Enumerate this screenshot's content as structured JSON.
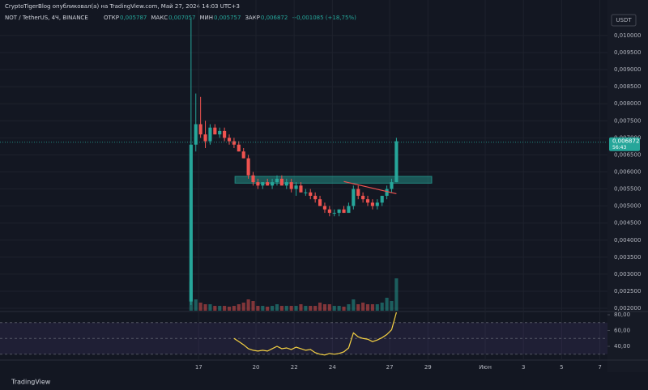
{
  "header": "CryptoTigerBlog опубликовал(а) на TradingView.com, Май 27, 2024 14:03 UTC+3",
  "legend": {
    "symbol": "NOT / TetherUS, 4Ч, BINANCE",
    "items": [
      {
        "label": "ОТКР",
        "value": "0,005787"
      },
      {
        "label": "МАКС",
        "value": "0,007057"
      },
      {
        "label": "МИН",
        "value": "0,005757"
      },
      {
        "label": "ЗАКР",
        "value": "0,006872"
      }
    ],
    "change": "+0,001085 (+18,75%)"
  },
  "currency": "USDT",
  "footer": "TradingView",
  "chart_data": {
    "type": "candlestick",
    "up_color": "#26a69a",
    "down_color": "#ef5350",
    "x": [
      16.6,
      16.85,
      17.1,
      17.35,
      17.6,
      17.85,
      18.1,
      18.35,
      18.6,
      18.85,
      19.1,
      19.35,
      19.6,
      19.85,
      20.1,
      20.35,
      20.6,
      20.85,
      21.1,
      21.35,
      21.6,
      21.85,
      22.1,
      22.35,
      22.6,
      22.85,
      23.1,
      23.35,
      23.6,
      23.85,
      24.1,
      24.35,
      24.6,
      24.85,
      25.1,
      25.35,
      25.6,
      25.85,
      26.1,
      26.35,
      26.6,
      26.85,
      27.1,
      27.35
    ],
    "open": [
      0.0022,
      0.0068,
      0.0074,
      0.0071,
      0.0069,
      0.0073,
      0.0071,
      0.0072,
      0.007,
      0.0069,
      0.0068,
      0.0066,
      0.0064,
      0.0059,
      0.0057,
      0.0056,
      0.0057,
      0.0056,
      0.0057,
      0.0058,
      0.0056,
      0.0057,
      0.0055,
      0.0056,
      0.0054,
      0.0054,
      0.0053,
      0.0052,
      0.005,
      0.0049,
      0.0048,
      0.0048,
      0.0049,
      0.0048,
      0.005,
      0.0055,
      0.0053,
      0.0052,
      0.0051,
      0.005,
      0.0051,
      0.0053,
      0.0055,
      0.0057
    ],
    "high": [
      0.0105,
      0.0083,
      0.0082,
      0.0075,
      0.0074,
      0.0074,
      0.0073,
      0.0073,
      0.0071,
      0.007,
      0.0069,
      0.0067,
      0.0065,
      0.006,
      0.0058,
      0.0057,
      0.0058,
      0.0058,
      0.0059,
      0.0059,
      0.0058,
      0.0058,
      0.0057,
      0.0057,
      0.0055,
      0.0055,
      0.0054,
      0.0053,
      0.0051,
      0.005,
      0.0049,
      0.0049,
      0.005,
      0.0051,
      0.0056,
      0.0056,
      0.0054,
      0.0053,
      0.0052,
      0.0052,
      0.0053,
      0.0056,
      0.0058,
      0.007
    ],
    "low": [
      0.0021,
      0.0066,
      0.007,
      0.0067,
      0.0068,
      0.0071,
      0.007,
      0.0069,
      0.0068,
      0.0067,
      0.0066,
      0.0064,
      0.0058,
      0.0056,
      0.0055,
      0.0055,
      0.0056,
      0.0055,
      0.0056,
      0.0056,
      0.0055,
      0.0054,
      0.0053,
      0.0054,
      0.0053,
      0.0052,
      0.0051,
      0.005,
      0.0048,
      0.0047,
      0.0047,
      0.0047,
      0.0048,
      0.0048,
      0.0049,
      0.0052,
      0.0051,
      0.005,
      0.0049,
      0.0049,
      0.005,
      0.0052,
      0.0054,
      0.0057
    ],
    "close": [
      0.0068,
      0.0074,
      0.0071,
      0.0069,
      0.0073,
      0.0071,
      0.0072,
      0.007,
      0.0069,
      0.0068,
      0.0066,
      0.0064,
      0.0059,
      0.0057,
      0.0056,
      0.0057,
      0.0056,
      0.0057,
      0.0058,
      0.0056,
      0.0057,
      0.0055,
      0.0056,
      0.0054,
      0.0054,
      0.0053,
      0.0052,
      0.005,
      0.0049,
      0.0048,
      0.0048,
      0.0049,
      0.0048,
      0.005,
      0.0055,
      0.0053,
      0.0052,
      0.0051,
      0.005,
      0.0051,
      0.0053,
      0.0055,
      0.0057,
      0.0069
    ],
    "volume": [
      36,
      14,
      10,
      8,
      8,
      6,
      6,
      6,
      5,
      6,
      8,
      10,
      14,
      12,
      6,
      6,
      5,
      6,
      8,
      6,
      6,
      6,
      6,
      8,
      6,
      6,
      6,
      10,
      8,
      8,
      6,
      6,
      5,
      8,
      14,
      8,
      10,
      8,
      8,
      8,
      10,
      16,
      12,
      40
    ],
    "xlim": [
      6.6,
      38.4
    ],
    "xticks": [
      17,
      20,
      22,
      24,
      27,
      29,
      {
        "value": 32,
        "label": "Июн"
      },
      {
        "value": 34,
        "label": "3"
      },
      {
        "value": 36,
        "label": "5"
      },
      {
        "value": 38,
        "label": "7"
      }
    ],
    "ylim": [
      0.00193,
      0.01052
    ],
    "yticks": [
      {
        "value": 0.002,
        "label": "0,002000"
      },
      {
        "value": 0.0025,
        "label": "0,002500"
      },
      {
        "value": 0.003,
        "label": "0,003000"
      },
      {
        "value": 0.0035,
        "label": "0,003500"
      },
      {
        "value": 0.004,
        "label": "0,004000"
      },
      {
        "value": 0.0045,
        "label": "0,004500"
      },
      {
        "value": 0.005,
        "label": "0,005000"
      },
      {
        "value": 0.0055,
        "label": "0,005500"
      },
      {
        "value": 0.006,
        "label": "0,006000"
      },
      {
        "value": 0.0065,
        "label": "0,006500"
      },
      {
        "value": 0.007,
        "label": "0,007000"
      },
      {
        "value": 0.0075,
        "label": "0,007500"
      },
      {
        "value": 0.008,
        "label": "0,008000"
      },
      {
        "value": 0.0085,
        "label": "0,008500"
      },
      {
        "value": 0.009,
        "label": "0,009000"
      },
      {
        "value": 0.0095,
        "label": "0,009500"
      },
      {
        "value": 0.01,
        "label": "0,010000"
      }
    ],
    "grid": true,
    "last_price": {
      "value": 0.006872,
      "label": "0,006872",
      "timer": "56:43"
    },
    "zone": {
      "x": [
        18.9,
        29.2
      ],
      "y": [
        0.00567,
        0.00587
      ],
      "color": "#26a69a"
    },
    "trendline": {
      "x": [
        24.6,
        27.35
      ],
      "y": [
        0.00572,
        0.00536
      ],
      "color": "#ef5350"
    },
    "rsi": {
      "color": "#f5d142",
      "values": [
        null,
        null,
        null,
        null,
        null,
        null,
        null,
        null,
        null,
        50,
        46,
        42,
        37,
        35,
        34,
        35,
        34,
        37,
        40,
        37,
        38,
        36,
        39,
        37,
        35,
        36,
        32,
        30,
        29,
        31,
        30,
        31,
        33,
        38,
        57,
        52,
        50,
        49,
        46,
        48,
        51,
        55,
        61,
        83
      ],
      "ylim": [
        22.6,
        84.1
      ],
      "yticks": [
        {
          "value": 80,
          "label": "80,00"
        },
        {
          "value": 60,
          "label": "60,00"
        },
        {
          "value": 40,
          "label": "40,00"
        }
      ],
      "levels": [
        70,
        50,
        30
      ]
    }
  }
}
